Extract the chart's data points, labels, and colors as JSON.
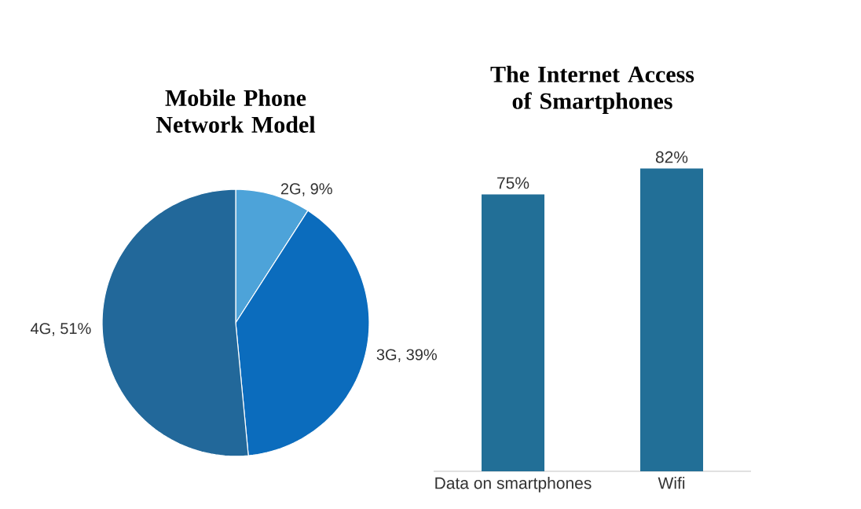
{
  "chart_data": [
    {
      "type": "pie",
      "title": "Mobile Phone Network Model",
      "categories": [
        "2G",
        "3G",
        "4G"
      ],
      "values": [
        9,
        39,
        51
      ],
      "value_labels": [
        ", 9%",
        ", 39%",
        ", 51%"
      ],
      "colors": [
        "#4da3d9",
        "#0b6cbd",
        "#22689a"
      ]
    },
    {
      "type": "bar",
      "title": "The Internet Access of Smartphones",
      "categories": [
        "Data on smartphones",
        "Wifi"
      ],
      "values": [
        75,
        82
      ],
      "value_labels": [
        "75%",
        "82%"
      ],
      "color": "#226f97",
      "tick_labels": "x"
    }
  ]
}
